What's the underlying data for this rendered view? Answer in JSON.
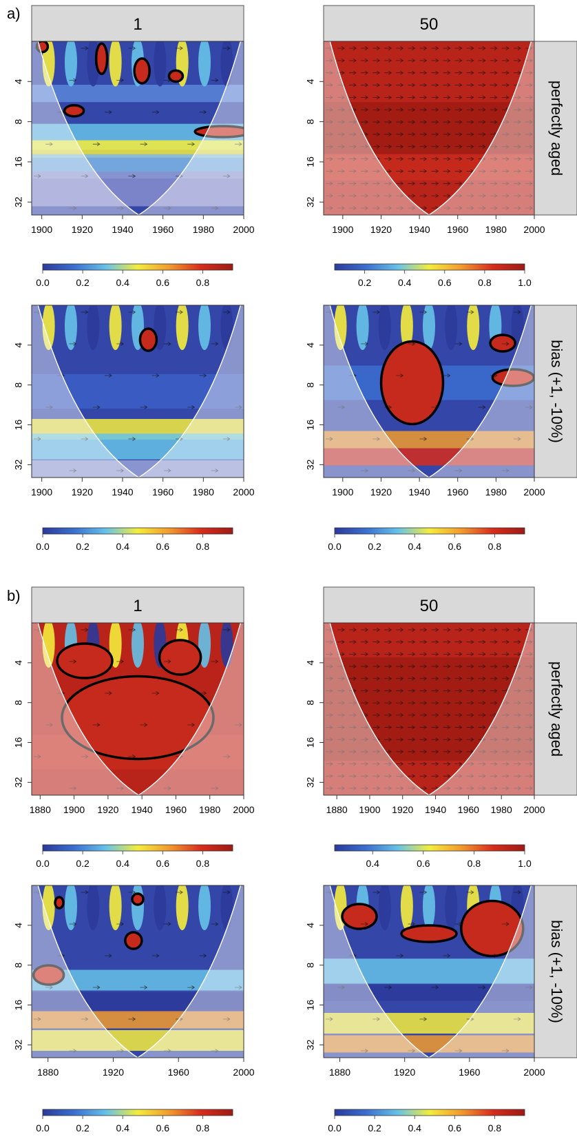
{
  "figure": {
    "section_labels": [
      "a)",
      "b)"
    ],
    "column_headers": [
      "1",
      "50"
    ],
    "row_labels": [
      "perfectly aged",
      "bias (+1, -10%)"
    ]
  },
  "chart_data": [
    {
      "type": "heatmap",
      "panel": "a) 1 perfectly aged",
      "title": "1",
      "row_label": "",
      "xlim": [
        1895,
        2000
      ],
      "x_ticks": [
        "1900",
        "1920",
        "1940",
        "1960",
        "1980",
        "2000"
      ],
      "y_ticks": [
        "4",
        "8",
        "16",
        "32"
      ],
      "colorbar_ticks": [
        "0.0",
        "0.2",
        "0.4",
        "0.6",
        "0.8"
      ],
      "colorbar_range": [
        0,
        0.95
      ],
      "coi_min_x": 1948
    },
    {
      "type": "heatmap",
      "panel": "a) 50 perfectly aged",
      "title": "50",
      "row_label": "perfectly aged",
      "xlim": [
        1890,
        2000
      ],
      "x_ticks": [
        "1900",
        "1920",
        "1940",
        "1960",
        "1980",
        "2000"
      ],
      "y_ticks": [
        "4",
        "8",
        "16",
        "32"
      ],
      "colorbar_ticks": [
        "0.2",
        "0.4",
        "0.6",
        "0.8",
        "1.0"
      ],
      "colorbar_range": [
        0.05,
        1.0
      ],
      "coi_min_x": 1945
    },
    {
      "type": "heatmap",
      "panel": "a) 1 bias",
      "title": "",
      "row_label": "",
      "xlim": [
        1895,
        2000
      ],
      "x_ticks": [
        "1900",
        "1920",
        "1940",
        "1960",
        "1980",
        "2000"
      ],
      "y_ticks": [
        "4",
        "8",
        "16",
        "32"
      ],
      "colorbar_ticks": [
        "0.0",
        "0.2",
        "0.4",
        "0.6",
        "0.8"
      ],
      "colorbar_range": [
        0,
        0.95
      ],
      "coi_min_x": 1948
    },
    {
      "type": "heatmap",
      "panel": "a) 50 bias",
      "title": "",
      "row_label": "bias (+1, -10%)",
      "xlim": [
        1890,
        2000
      ],
      "x_ticks": [
        "1900",
        "1920",
        "1940",
        "1960",
        "1980",
        "2000"
      ],
      "y_ticks": [
        "4",
        "8",
        "16",
        "32"
      ],
      "colorbar_ticks": [
        "0.0",
        "0.2",
        "0.4",
        "0.6",
        "0.8"
      ],
      "colorbar_range": [
        0,
        0.95
      ],
      "coi_min_x": 1945
    },
    {
      "type": "heatmap",
      "panel": "b) 1 perfectly aged",
      "title": "1",
      "row_label": "",
      "xlim": [
        1875,
        2000
      ],
      "x_ticks": [
        "1880",
        "1900",
        "1920",
        "1940",
        "1960",
        "1980",
        "2000"
      ],
      "y_ticks": [
        "4",
        "8",
        "16",
        "32"
      ],
      "colorbar_ticks": [
        "0.0",
        "0.2",
        "0.4",
        "0.6",
        "0.8"
      ],
      "colorbar_range": [
        0,
        0.95
      ],
      "coi_min_x": 1938
    },
    {
      "type": "heatmap",
      "panel": "b) 50 perfectly aged",
      "title": "50",
      "row_label": "perfectly aged",
      "xlim": [
        1872,
        2000
      ],
      "x_ticks": [
        "1880",
        "1900",
        "1920",
        "1940",
        "1960",
        "1980",
        "2000"
      ],
      "y_ticks": [
        "4",
        "8",
        "16",
        "32"
      ],
      "colorbar_ticks": [
        "0.4",
        "0.6",
        "0.8",
        "1.0"
      ],
      "colorbar_range": [
        0.25,
        1.0
      ],
      "coi_min_x": 1936
    },
    {
      "type": "heatmap",
      "panel": "b) 1 bias",
      "title": "",
      "row_label": "",
      "xlim": [
        1870,
        2000
      ],
      "x_ticks": [
        "1880",
        "1920",
        "1960",
        "2000"
      ],
      "y_ticks": [
        "4",
        "8",
        "16",
        "32"
      ],
      "colorbar_ticks": [
        "0.0",
        "0.2",
        "0.4",
        "0.6",
        "0.8"
      ],
      "colorbar_range": [
        0,
        0.95
      ],
      "coi_min_x": 1935
    },
    {
      "type": "heatmap",
      "panel": "b) 50 bias",
      "title": "",
      "row_label": "bias (+1, -10%)",
      "xlim": [
        1870,
        2000
      ],
      "x_ticks": [
        "1880",
        "1920",
        "1960",
        "2000"
      ],
      "y_ticks": [
        "4",
        "8",
        "16",
        "32"
      ],
      "colorbar_ticks": [
        "0.0",
        "0.2",
        "0.4",
        "0.6",
        "0.8"
      ],
      "colorbar_range": [
        0,
        0.95
      ],
      "coi_min_x": 1935
    }
  ],
  "colors": {
    "scale": [
      "#2b3a9a",
      "#3b6fd0",
      "#66c2e8",
      "#f4ec3c",
      "#f29a2e",
      "#d72c1c",
      "#9e1b14"
    ],
    "header_bg": "#d9d9d9",
    "coi_overlay": "#ffffff",
    "contour": "#000000"
  }
}
